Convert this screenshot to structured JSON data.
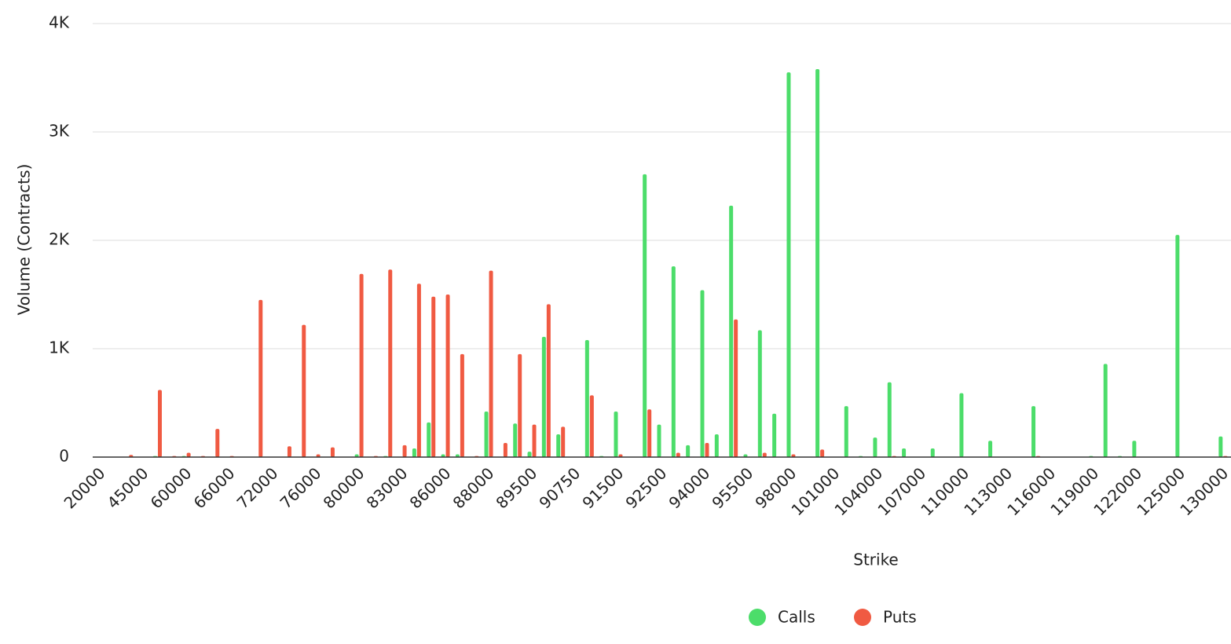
{
  "chart_data": {
    "type": "bar",
    "x_label": "Strike",
    "y_label": "Volume (Contracts)",
    "categories": [
      "20000",
      null,
      null,
      "45000",
      null,
      null,
      "60000",
      null,
      null,
      "66000",
      null,
      null,
      "72000",
      null,
      null,
      "76000",
      null,
      null,
      "80000",
      null,
      null,
      "83000",
      null,
      null,
      "86000",
      null,
      null,
      "88000",
      null,
      null,
      "89500",
      null,
      null,
      "90750",
      null,
      null,
      "91500",
      null,
      null,
      "92500",
      null,
      null,
      "94000",
      null,
      null,
      "95500",
      null,
      null,
      "98000",
      null,
      null,
      "101000",
      null,
      null,
      "104000",
      null,
      null,
      "107000",
      null,
      null,
      "110000",
      null,
      null,
      "113000",
      null,
      null,
      "116000",
      null,
      null,
      "119000",
      null,
      null,
      "122000",
      null,
      null,
      "125000",
      null,
      null,
      "130000"
    ],
    "series": [
      {
        "name": "Calls",
        "color": "#4cdd6a",
        "values": [
          null,
          null,
          null,
          null,
          10,
          null,
          10,
          null,
          null,
          null,
          null,
          null,
          null,
          null,
          null,
          null,
          null,
          null,
          25,
          null,
          10,
          null,
          80,
          320,
          25,
          25,
          null,
          420,
          null,
          310,
          50,
          1110,
          210,
          null,
          1080,
          10,
          420,
          null,
          2610,
          300,
          1760,
          110,
          1540,
          210,
          2320,
          25,
          1170,
          400,
          3550,
          null,
          3580,
          null,
          470,
          10,
          180,
          690,
          80,
          null,
          80,
          null,
          590,
          null,
          150,
          null,
          null,
          470,
          null,
          null,
          null,
          10,
          860,
          10,
          150,
          null,
          null,
          2050,
          null,
          null,
          190
        ]
      },
      {
        "name": "Puts",
        "color": "#f05a42",
        "values": [
          null,
          null,
          20,
          null,
          620,
          10,
          40,
          10,
          260,
          10,
          null,
          1450,
          null,
          100,
          1220,
          25,
          90,
          null,
          1690,
          10,
          1730,
          110,
          1600,
          1480,
          1500,
          950,
          10,
          1720,
          130,
          950,
          300,
          1410,
          280,
          null,
          570,
          null,
          25,
          null,
          440,
          null,
          40,
          null,
          130,
          null,
          1270,
          null,
          40,
          null,
          25,
          null,
          70,
          null,
          null,
          null,
          null,
          10,
          null,
          null,
          null,
          null,
          null,
          null,
          null,
          null,
          null,
          10,
          null,
          null,
          null,
          null,
          null,
          null,
          null,
          null,
          null,
          null,
          null,
          null,
          10
        ]
      }
    ],
    "ylim": [
      0,
      4000
    ],
    "yticks": [
      {
        "value": 0,
        "label": "0"
      },
      {
        "value": 1000,
        "label": "1K"
      },
      {
        "value": 2000,
        "label": "2K"
      },
      {
        "value": 3000,
        "label": "3K"
      },
      {
        "value": 4000,
        "label": "4K"
      }
    ],
    "grid": true,
    "legend": "bottom"
  }
}
